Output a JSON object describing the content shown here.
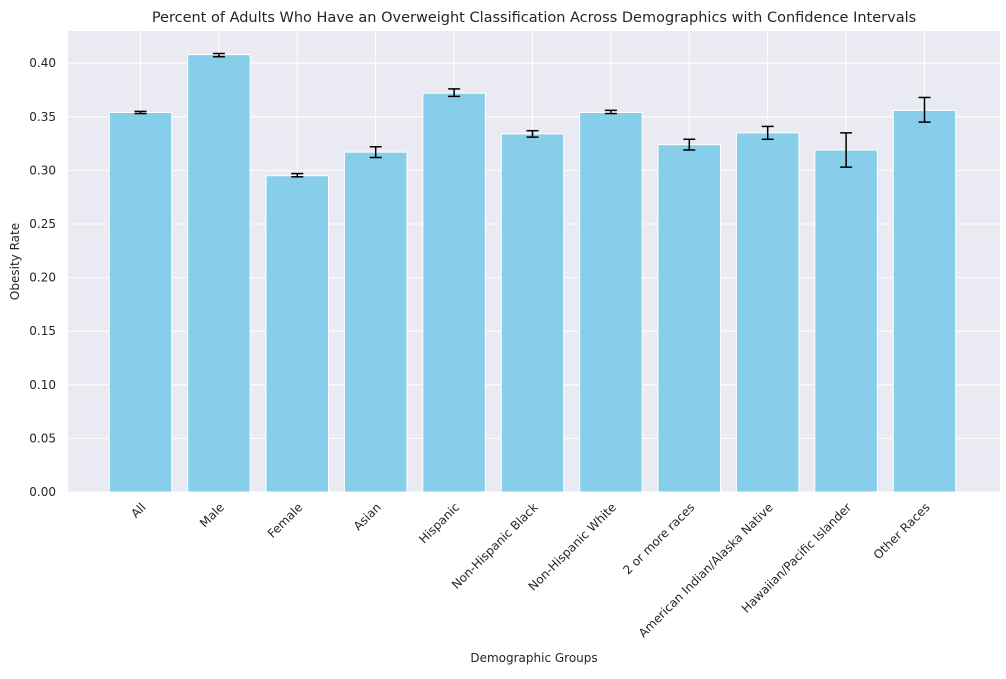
{
  "chart_data": {
    "type": "bar",
    "title": "Percent of Adults Who Have an Overweight Classification Across Demographics with Confidence Intervals",
    "xlabel": "Demographic Groups",
    "ylabel": "Obesity Rate",
    "ylim": [
      0,
      0.43
    ],
    "yticks": [
      "0.00",
      "0.05",
      "0.10",
      "0.15",
      "0.20",
      "0.25",
      "0.30",
      "0.35",
      "0.40"
    ],
    "grid": true,
    "categories": [
      "All",
      "Male",
      "Female",
      "Asian",
      "Hispanic",
      "Non-Hispanic Black",
      "Non-Hispanic White",
      "2 or more races",
      "American Indian/Alaska Native",
      "Hawaiian/Pacific Islander",
      "Other Races"
    ],
    "values": [
      0.354,
      0.408,
      0.295,
      0.317,
      0.372,
      0.334,
      0.354,
      0.324,
      0.335,
      0.319,
      0.356
    ],
    "ci_lower": [
      0.353,
      0.406,
      0.294,
      0.312,
      0.369,
      0.331,
      0.353,
      0.319,
      0.329,
      0.303,
      0.345
    ],
    "ci_upper": [
      0.355,
      0.409,
      0.297,
      0.322,
      0.376,
      0.337,
      0.356,
      0.329,
      0.341,
      0.335,
      0.368
    ],
    "colors": {
      "bar": "#87CEEB",
      "plot_background": "#EAEAF2",
      "grid": "#FFFFFF",
      "error_bar": "#000000"
    }
  }
}
